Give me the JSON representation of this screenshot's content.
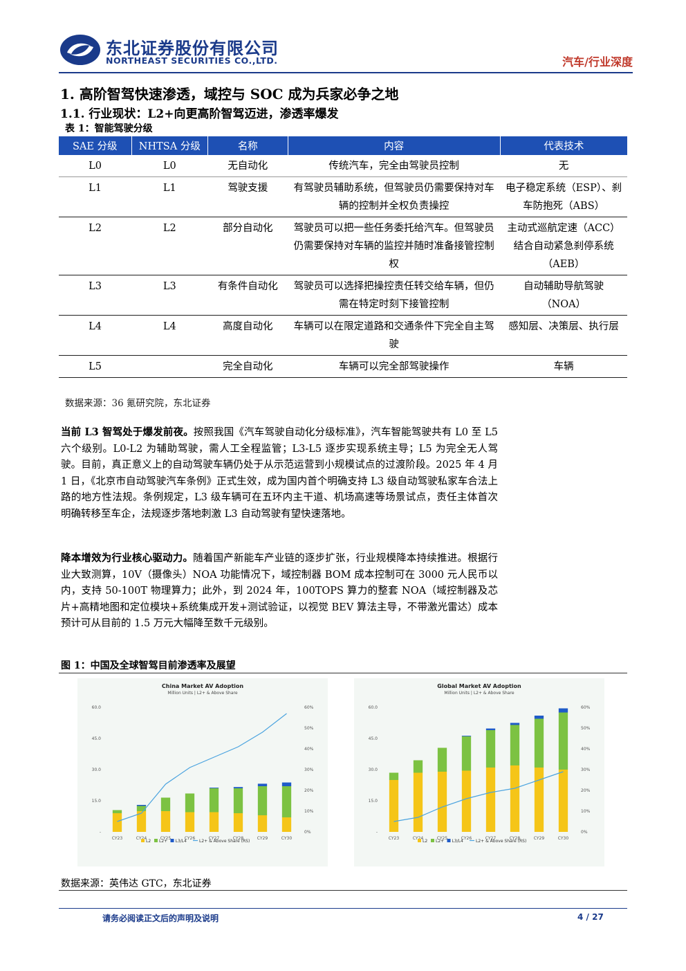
{
  "header": {
    "company_cn": "东北证券股份有限公司",
    "company_en": "NORTHEAST SECURITIES CO.,LTD.",
    "category": "汽车/行业深度"
  },
  "section": {
    "h1": "1.  高阶智驾快速渗透，域控与 SOC 成为兵家必争之地",
    "h2": "1.1.   行业现状：L2+向更高阶智驾迈进，渗透率爆发"
  },
  "table1": {
    "caption": "表 1：智能驾驶分级",
    "headers": [
      "SAE 分级",
      "NHTSA 分级",
      "名称",
      "内容",
      "代表技术"
    ],
    "rows": [
      [
        "L0",
        "L0",
        "无自动化",
        "传统汽车，完全由驾驶员控制",
        "无"
      ],
      [
        "L1",
        "L1",
        "驾驶支援",
        "有驾驶员辅助系统，但驾驶员仍需要保持对车辆的控制并全权负责操控",
        "电子稳定系统（ESP）、刹车防抱死（ABS）"
      ],
      [
        "L2",
        "L2",
        "部分自动化",
        "驾驶员可以把一些任务委托给汽车。但驾驶员仍需要保持对车辆的监控并随时准备接管控制权",
        "主动式巡航定速（ACC）结合自动紧急刹停系统（AEB）"
      ],
      [
        "L3",
        "L3",
        "有条件自动化",
        "驾驶员可以选择把操控责任转交给车辆，但仍需在特定时刻下接管控制",
        "自动辅助导航驾驶（NOA）"
      ],
      [
        "L4",
        "L4",
        "高度自动化",
        "车辆可以在限定道路和交通条件下完全自主驾驶",
        "感知层、决策层、执行层"
      ],
      [
        "L5",
        "",
        "完全自动化",
        "车辆可以完全部驾驶操作",
        "车辆"
      ]
    ],
    "source": "数据来源：36 氪研究院，东北证券"
  },
  "paragraphs": [
    {
      "lead": "当前 L3 智驾处于爆发前夜。",
      "text": "按照我国《汽车驾驶自动化分级标准》，汽车智能驾驶共有 L0 至 L5 六个级别。L0-L2 为辅助驾驶，需人工全程监管；L3-L5 逐步实现系统主导；L5 为完全无人驾驶。目前，真正意义上的自动驾驶车辆仍处于从示范运营到小规模试点的过渡阶段。2025 年 4 月 1 日，《北京市自动驾驶汽车条例》正式生效，成为国内首个明确支持 L3 级自动驾驶私家车合法上路的地方性法规。条例规定，L3 级车辆可在五环内主干道、机场高速等场景试点，责任主体首次明确转移至车企，法规逐步落地刺激 L3 自动驾驶有望快速落地。"
    },
    {
      "lead": "降本增效为行业核心驱动力。",
      "text": "随着国产新能车产业链的逐步扩张，行业规模降本持续推进。根据行业大致测算，10V（摄像头）NOA 功能情况下，域控制器 BOM 成本控制可在 3000 元人民币以内，支持 50-100T 物理算力；此外，到 2024 年，100TOPS 算力的整套 NOA（域控制器及芯片+高精地图和定位模块+系统集成开发+测试验证，以视觉 BEV 算法主导，不带激光雷达）成本预计可从目前的 1.5 万元大幅降至数千元级别。"
    }
  ],
  "figure1": {
    "caption": "图 1：中国及全球智驾目前渗透率及展望",
    "source": "数据来源：英伟达 GTC，东北证券"
  },
  "chart_data": [
    {
      "type": "bar",
      "title": "China Market AV Adoption",
      "subtitle": "Million Units | L2+ & Above Share",
      "categories": [
        "CY23",
        "CY24",
        "CY25",
        "CY26",
        "CY27",
        "CY28",
        "CY29",
        "CY30"
      ],
      "stacked": true,
      "series": [
        {
          "name": "L2",
          "color": "#f5c518",
          "values": [
            9,
            10,
            10,
            9.5,
            9.5,
            9,
            8,
            7
          ]
        },
        {
          "name": "L2+",
          "color": "#7cc242",
          "values": [
            1.5,
            2.5,
            6.5,
            9,
            11.5,
            12,
            14,
            15
          ]
        },
        {
          "name": "L3/L4",
          "color": "#1f5bc8",
          "values": [
            0,
            0.5,
            0,
            0,
            0.3,
            0.6,
            1.2,
            1.8
          ]
        }
      ],
      "line": {
        "name": "L2+ & Above Share (RS)",
        "color": "#4aa3df",
        "values": [
          0.05,
          0.09,
          0.23,
          0.31,
          0.36,
          0.41,
          0.48,
          0.57
        ]
      },
      "ylim": [
        0,
        60
      ],
      "y2lim": [
        0,
        0.6
      ],
      "yticks": [
        "-",
        "15.0",
        "30.0",
        "45.0",
        "60.0"
      ],
      "y2ticks": [
        "0%",
        "10%",
        "20%",
        "30%",
        "40%",
        "50%",
        "60%"
      ],
      "legend_position": "bottom"
    },
    {
      "type": "bar",
      "title": "Global Market AV Adoption",
      "subtitle": "Million Units | L2+ & Above Share",
      "categories": [
        "CY23",
        "CY24",
        "CY25",
        "CY26",
        "CY27",
        "CY28",
        "CY29",
        "CY30"
      ],
      "stacked": true,
      "series": [
        {
          "name": "L2",
          "color": "#f5c518",
          "values": [
            25,
            28.5,
            29,
            29.5,
            31,
            32,
            31,
            30
          ]
        },
        {
          "name": "L2+",
          "color": "#7cc242",
          "values": [
            3.5,
            6,
            11.5,
            16.5,
            18,
            19.5,
            23.5,
            27.5
          ]
        },
        {
          "name": "L3/L4",
          "color": "#1f5bc8",
          "values": [
            0,
            0,
            0,
            0.3,
            0.8,
            1,
            1.5,
            2
          ]
        }
      ],
      "line": {
        "name": "L2+ & Above Share (RS)",
        "color": "#4aa3df",
        "values": [
          0.05,
          0.07,
          0.12,
          0.16,
          0.19,
          0.21,
          0.25,
          0.29
        ]
      },
      "ylim": [
        0,
        60
      ],
      "y2lim": [
        0,
        0.6
      ],
      "yticks": [
        "-",
        "15.0",
        "30.0",
        "45.0",
        "60.0"
      ],
      "y2ticks": [
        "0%",
        "10%",
        "20%",
        "30%",
        "40%",
        "50%",
        "60%"
      ],
      "legend_position": "bottom"
    }
  ],
  "footer": {
    "disclaimer": "请务必阅读正文后的声明及说明",
    "page": "4 / 27"
  },
  "colors": {
    "brand": "#1a3a8a",
    "table_header": "#1e50b4",
    "category": "#c0392b"
  }
}
